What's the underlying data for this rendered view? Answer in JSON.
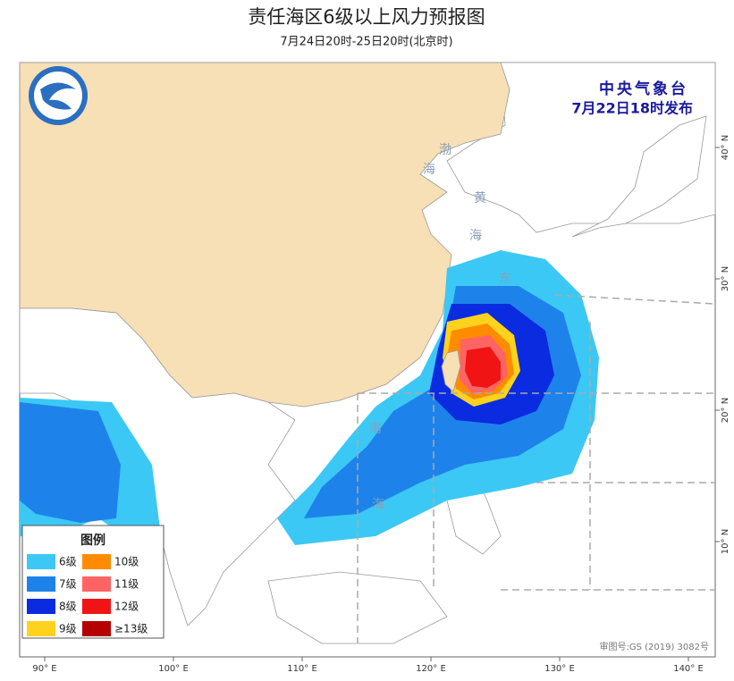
{
  "header": {
    "title": "责任海区6级以上风力预报图",
    "subtitle": "7月24日20时-25日20时(北京时)"
  },
  "issuer": {
    "agency": "中央气象台",
    "time": "7月22日18时发布"
  },
  "legend": {
    "title": "图例",
    "items": [
      {
        "label": "6级",
        "color": "#3cc8f5"
      },
      {
        "label": "7级",
        "color": "#1e82eb"
      },
      {
        "label": "8级",
        "color": "#0a2be0"
      },
      {
        "label": "9级",
        "color": "#ffd21e"
      },
      {
        "label": "10级",
        "color": "#ff8c00"
      },
      {
        "label": "11级",
        "color": "#ff6464"
      },
      {
        "label": "12级",
        "color": "#f01414"
      },
      {
        "label": "≥13级",
        "color": "#b40000"
      }
    ]
  },
  "sea_labels": [
    "渤",
    "海",
    "黄",
    "海",
    "东",
    "南",
    "海"
  ],
  "axis": {
    "lon": [
      "90° E",
      "100° E",
      "110° E",
      "120° E",
      "130° E",
      "140° E"
    ],
    "lat": [
      "40° N",
      "30° N",
      "20° N",
      "10° N"
    ]
  },
  "approval": "审图号:GS (2019) 3082号"
}
